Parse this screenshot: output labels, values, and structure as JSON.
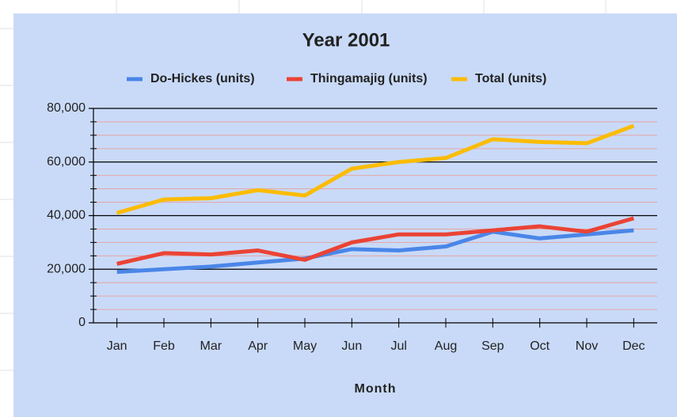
{
  "chart_data": {
    "type": "line",
    "title": "Year 2001",
    "x_label": "Month",
    "categories": [
      "Jan",
      "Feb",
      "Mar",
      "Apr",
      "May",
      "Jun",
      "Jul",
      "Aug",
      "Sep",
      "Oct",
      "Nov",
      "Dec"
    ],
    "series": [
      {
        "name": "Do-Hickes (units)",
        "color": "#4a86e8",
        "values": [
          19000,
          20000,
          21000,
          22500,
          24000,
          27500,
          27000,
          28500,
          34000,
          31500,
          33000,
          34500
        ]
      },
      {
        "name": "Thingamajig (units)",
        "color": "#ea4335",
        "values": [
          22000,
          26000,
          25500,
          27000,
          23500,
          30000,
          33000,
          33000,
          34500,
          36000,
          34000,
          39000
        ]
      },
      {
        "name": "Total (units)",
        "color": "#fbbc04",
        "values": [
          41000,
          46000,
          46500,
          49500,
          47500,
          57500,
          60000,
          61500,
          68500,
          67500,
          67000,
          73500
        ]
      }
    ],
    "ylim": [
      0,
      80000
    ],
    "yticks": [
      0,
      {
        "value": 20000,
        "label": "20,000"
      },
      {
        "value": 40000,
        "label": "40,000"
      },
      {
        "value": 60000,
        "label": "60,000"
      },
      {
        "value": 80000,
        "label": "80,000"
      }
    ],
    "minor_yticks": [
      5000,
      10000,
      15000,
      25000,
      30000,
      35000,
      45000,
      50000,
      55000,
      65000,
      70000,
      75000
    ],
    "grid": true,
    "legend": "top"
  }
}
